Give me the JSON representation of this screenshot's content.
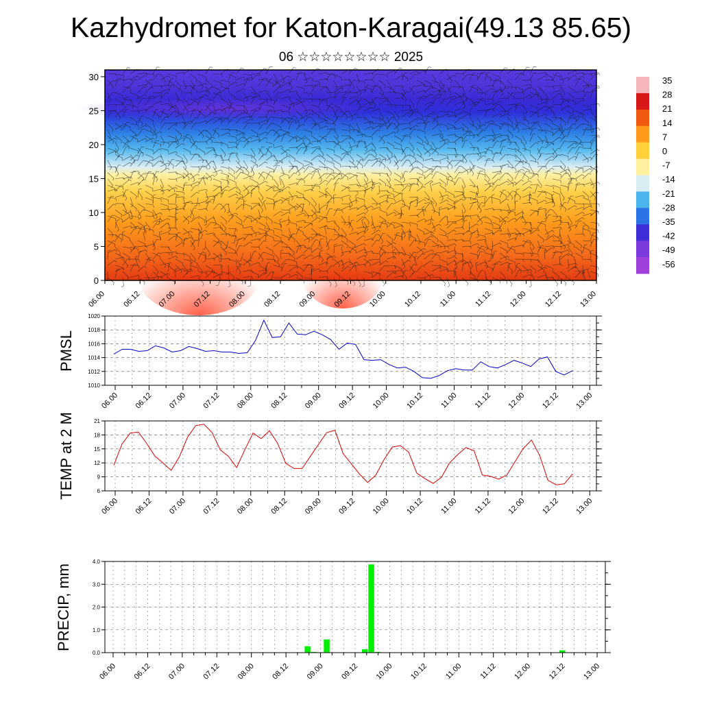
{
  "header": {
    "title": "Kazhydromet for Katon-Karagai(49.13 85.65)",
    "subtitle": "06 ☆☆☆☆☆☆☆☆ 2025"
  },
  "time_labels": [
    "06.00",
    "06.12",
    "07.00",
    "07.12",
    "08.00",
    "08.12",
    "09.00",
    "09.12",
    "10.00",
    "10.12",
    "11.00",
    "11.12",
    "12.00",
    "12.12",
    "13.00"
  ],
  "colorbar": {
    "labels": [
      "35",
      "28",
      "21",
      "14",
      "7",
      "0",
      "-7",
      "-14",
      "-21",
      "-28",
      "-35",
      "-42",
      "-49",
      "-56"
    ],
    "colors": [
      "#f4b6b8",
      "#d61818",
      "#ef5a10",
      "#ff9a1c",
      "#ffcf3c",
      "#fff1a0",
      "#d8edf4",
      "#4cb4ec",
      "#2b73e6",
      "#3f2fd8",
      "#7a3adc",
      "#a040dc"
    ]
  },
  "chart_data": [
    {
      "type": "heatmap",
      "title": "",
      "xlabel": "",
      "ylabel": "",
      "x": [
        "06.00",
        "06.12",
        "07.00",
        "07.12",
        "08.00",
        "08.12",
        "09.00",
        "09.12",
        "10.00",
        "10.12",
        "11.00",
        "11.12",
        "12.00",
        "12.12",
        "13.00"
      ],
      "ylim": [
        0,
        31
      ],
      "yticks": [
        0,
        5,
        10,
        15,
        20,
        25,
        30
      ],
      "zrange": [
        -56,
        35
      ],
      "note_levels": [
        0,
        5,
        10,
        15,
        20,
        25,
        30
      ],
      "grid": false
    },
    {
      "type": "line",
      "ylabel": "PMSL",
      "ylim": [
        1010,
        1020
      ],
      "yticks": [
        1010,
        1012,
        1014,
        1016,
        1018,
        1020
      ],
      "grid": true,
      "color": "#0000cc",
      "values": [
        1014.5,
        1015.2,
        1015.2,
        1014.9,
        1015.0,
        1015.7,
        1015.4,
        1014.8,
        1015.0,
        1015.6,
        1015.3,
        1014.9,
        1015.0,
        1014.8,
        1014.8,
        1014.6,
        1014.7,
        1016.5,
        1019.4,
        1016.9,
        1017.0,
        1019.0,
        1017.4,
        1017.3,
        1017.8,
        1017.3,
        1016.6,
        1015.2,
        1016.1,
        1015.9,
        1013.7,
        1013.6,
        1013.7,
        1013.0,
        1012.5,
        1012.6,
        1012.0,
        1011.1,
        1011.0,
        1011.4,
        1012.1,
        1012.4,
        1012.2,
        1012.2,
        1013.4,
        1012.7,
        1012.5,
        1013.0,
        1013.6,
        1013.2,
        1012.7,
        1013.8,
        1014.1,
        1012.0,
        1011.5,
        1012.1
      ]
    },
    {
      "type": "line",
      "ylabel": "TEMP at 2 M",
      "ylim": [
        6,
        21
      ],
      "yticks": [
        6,
        9,
        12,
        15,
        18,
        21
      ],
      "grid": true,
      "color": "#dd0000",
      "values": [
        11.5,
        16.0,
        18.4,
        18.6,
        16.2,
        13.5,
        12.0,
        10.4,
        13.3,
        17.5,
        20.0,
        20.3,
        18.5,
        14.8,
        13.4,
        11.0,
        14.8,
        18.4,
        17.2,
        18.9,
        16.2,
        11.9,
        10.8,
        10.8,
        13.4,
        16.0,
        18.5,
        19.0,
        14.0,
        11.8,
        9.6,
        7.8,
        9.4,
        12.7,
        15.4,
        15.7,
        14.3,
        9.8,
        8.6,
        7.6,
        8.9,
        12.0,
        13.8,
        15.3,
        14.6,
        9.4,
        9.1,
        8.5,
        9.4,
        12.3,
        15.1,
        16.9,
        13.6,
        8.3,
        7.3,
        7.5,
        9.6
      ]
    },
    {
      "type": "bar",
      "ylabel": "PRECIP, mm",
      "ylim": [
        0,
        4
      ],
      "yticks": [
        "0.0",
        "1.0",
        "2.0",
        "3.0",
        "4.0"
      ],
      "grid": true,
      "color": "#00ee00",
      "values": [
        0,
        0,
        0,
        0,
        0,
        0,
        0,
        0,
        0,
        0,
        0,
        0,
        0,
        0,
        0,
        0,
        0,
        0,
        0,
        0,
        0,
        0,
        0,
        0,
        0,
        0,
        0,
        0,
        0,
        0,
        0.28,
        0.03,
        0,
        0.58,
        0,
        0,
        0,
        0,
        0,
        0.15,
        3.87,
        0.03,
        0,
        0,
        0,
        0,
        0,
        0,
        0,
        0,
        0,
        0,
        0,
        0,
        0,
        0,
        0,
        0,
        0,
        0,
        0,
        0,
        0,
        0,
        0,
        0,
        0,
        0,
        0,
        0,
        0.1,
        0,
        0,
        0,
        0,
        0
      ]
    }
  ]
}
